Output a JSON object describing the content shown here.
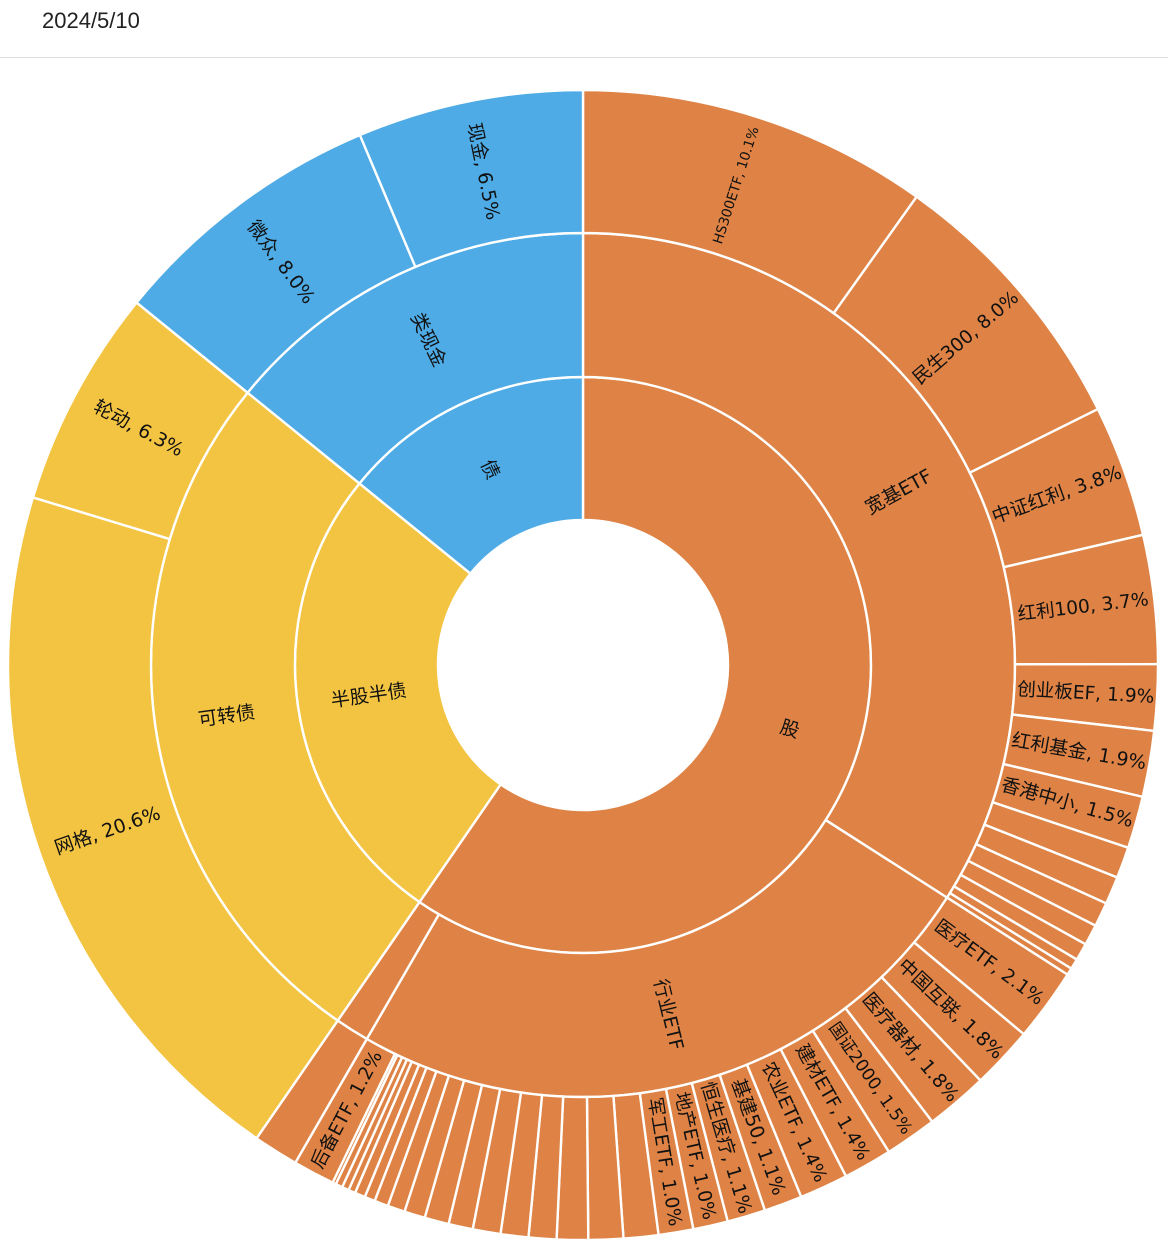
{
  "header": {
    "date": "2024/5/10"
  },
  "colors": {
    "equity": "#DE8345",
    "bond": "#4EABE6",
    "hybrid": "#F3C442",
    "separator": "#ffffff"
  },
  "chart_data": {
    "type": "sunburst",
    "title": "",
    "levels": [
      "asset_class",
      "category",
      "holding"
    ],
    "unit": "%",
    "data": [
      {
        "name": "股",
        "color": "#DE8345",
        "children": [
          {
            "name": "宽基ETF",
            "children": [
              {
                "name": "HS300ETF",
                "value": 10.1,
                "label": "HS300ETF, 10.1%"
              },
              {
                "name": "民生300",
                "value": 8.0,
                "label": "民生300, 8.0%"
              },
              {
                "name": "中证红利",
                "value": 3.8,
                "label": "中证红利, 3.8%"
              },
              {
                "name": "红利100",
                "value": 3.7,
                "label": "红利100, 3.7%"
              },
              {
                "name": "创业板EF",
                "value": 1.9,
                "label": "创业板EF, 1.9%"
              },
              {
                "name": "红利基金",
                "value": 1.9,
                "label": "红利基金, 1.9%"
              },
              {
                "name": "香港中小",
                "value": 1.5,
                "label": "香港中小, 1.5%"
              },
              {
                "name": "",
                "value": 0.9,
                "label": ""
              },
              {
                "name": "",
                "value": 0.8,
                "label": ""
              },
              {
                "name": "",
                "value": 0.7,
                "label": ""
              },
              {
                "name": "",
                "value": 0.6,
                "label": ""
              },
              {
                "name": "",
                "value": 0.5,
                "label": ""
              },
              {
                "name": "",
                "value": 0.3,
                "label": ""
              },
              {
                "name": "",
                "value": 0.2,
                "label": ""
              }
            ]
          },
          {
            "name": "行业ETF",
            "children": [
              {
                "name": "医疗ETF",
                "value": 2.1,
                "label": "医疗ETF, 2.1%"
              },
              {
                "name": "中国互联",
                "value": 1.8,
                "label": "中国互联, 1.8%"
              },
              {
                "name": "医疗器材",
                "value": 1.8,
                "label": "医疗器材, 1.8%"
              },
              {
                "name": "国证2000",
                "value": 1.5,
                "label": "国证2000, 1.5%"
              },
              {
                "name": "建材ETF",
                "value": 1.4,
                "label": "建材ETF, 1.4%"
              },
              {
                "name": "农业ETF",
                "value": 1.4,
                "label": "农业ETF, 1.4%"
              },
              {
                "name": "基建50",
                "value": 1.1,
                "label": "基建50, 1.1%"
              },
              {
                "name": "恒生医疗",
                "value": 1.1,
                "label": "恒生医疗, 1.1%"
              },
              {
                "name": "地产ETF",
                "value": 1.0,
                "label": "地产ETF, 1.0%"
              },
              {
                "name": "军工ETF",
                "value": 1.0,
                "label": "军工ETF, 1.0%"
              },
              {
                "name": "",
                "value": 1.0,
                "label": ""
              },
              {
                "name": "",
                "value": 1.0,
                "label": ""
              },
              {
                "name": "",
                "value": 0.9,
                "label": ""
              },
              {
                "name": "",
                "value": 0.8,
                "label": ""
              },
              {
                "name": "",
                "value": 0.8,
                "label": ""
              },
              {
                "name": "",
                "value": 0.8,
                "label": ""
              },
              {
                "name": "",
                "value": 0.7,
                "label": ""
              },
              {
                "name": "",
                "value": 0.7,
                "label": ""
              },
              {
                "name": "",
                "value": 0.6,
                "label": ""
              },
              {
                "name": "",
                "value": 0.5,
                "label": ""
              },
              {
                "name": "",
                "value": 0.4,
                "label": ""
              },
              {
                "name": "",
                "value": 0.3,
                "label": ""
              },
              {
                "name": "",
                "value": 0.3,
                "label": ""
              },
              {
                "name": "",
                "value": 0.2,
                "label": ""
              },
              {
                "name": "",
                "value": 0.2,
                "label": ""
              },
              {
                "name": "",
                "value": 0.2,
                "label": ""
              },
              {
                "name": "",
                "value": 0.1,
                "label": ""
              },
              {
                "name": "后备ETF",
                "value": 1.2,
                "label": "后备ETF, 1.2%"
              }
            ]
          },
          {
            "name": "",
            "children": [
              {
                "name": "",
                "value": 1.3,
                "label": ""
              }
            ]
          }
        ]
      },
      {
        "name": "半股半债",
        "color": "#F3C442",
        "children": [
          {
            "name": "可转债",
            "children": [
              {
                "name": "网格",
                "value": 20.6,
                "label": "网格, 20.6%"
              },
              {
                "name": "轮动",
                "value": 6.3,
                "label": "轮动, 6.3%"
              }
            ]
          }
        ]
      },
      {
        "name": "债",
        "color": "#4EABE6",
        "children": [
          {
            "name": "类现金",
            "children": [
              {
                "name": "微众",
                "value": 8.0,
                "label": "微众, 8.0%"
              },
              {
                "name": "现金",
                "value": 6.5,
                "label": "现金, 6.5%"
              }
            ]
          }
        ]
      }
    ]
  }
}
